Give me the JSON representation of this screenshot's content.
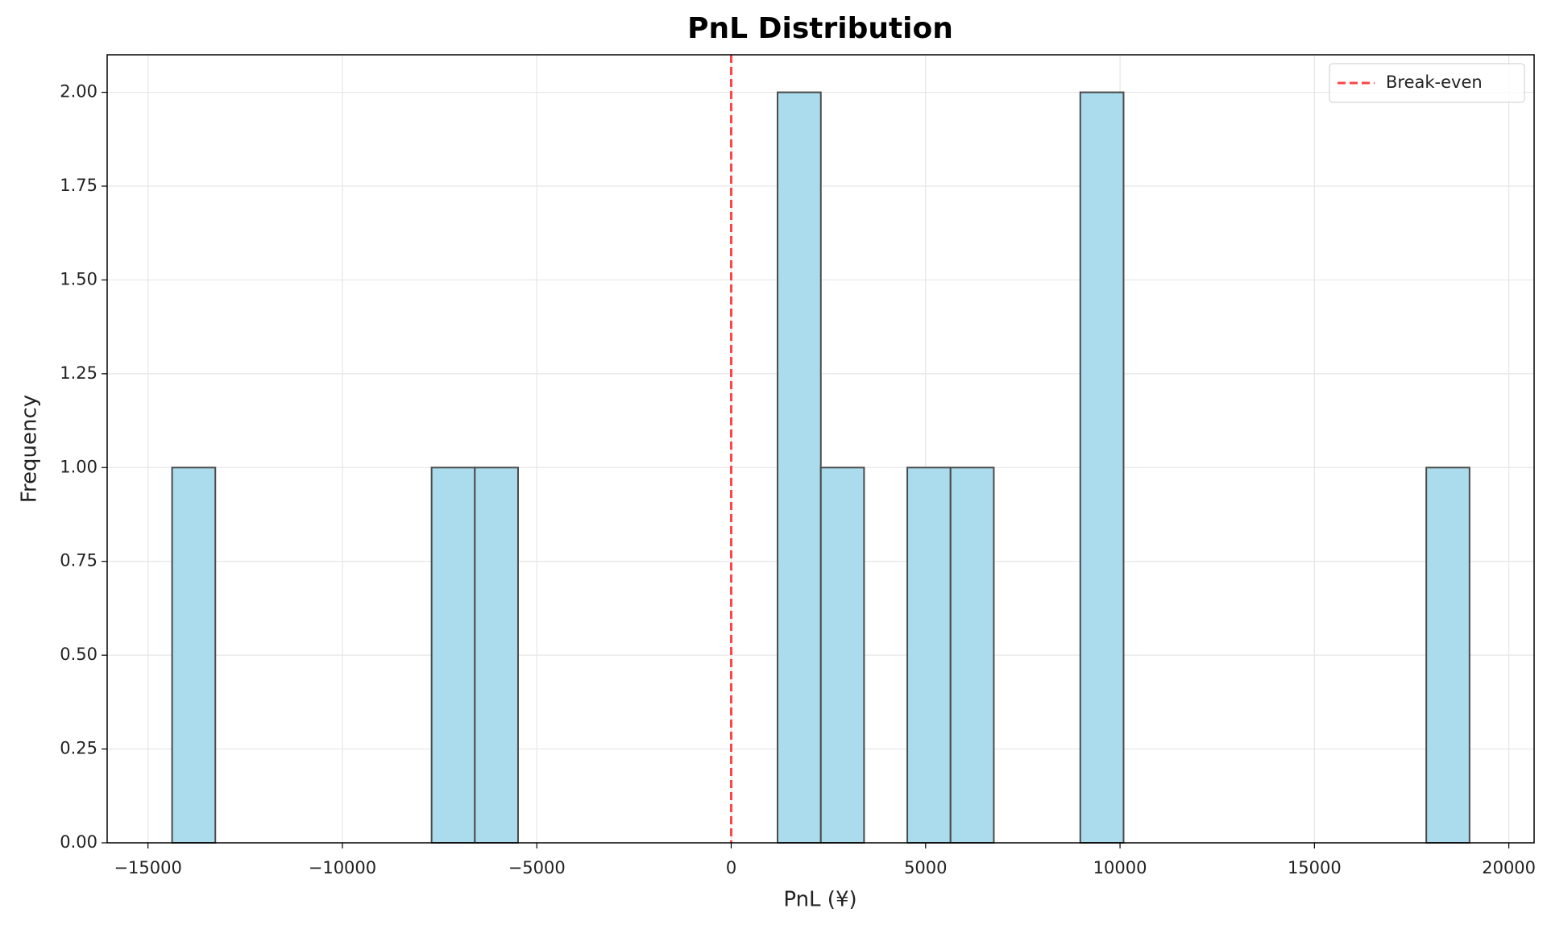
{
  "chart_data": {
    "type": "histogram",
    "title": "PnL Distribution",
    "x_label": "PnL (¥)",
    "y_label": "Frequency",
    "bins": [
      -14380,
      -13268,
      -12155,
      -11043,
      -9931,
      -8818,
      -7706,
      -6594,
      -5482,
      -4369,
      -3257,
      -2145,
      -1032,
      80,
      1192,
      2305,
      3417,
      4529,
      5641,
      6754,
      7866,
      8978,
      10091,
      11203,
      12315,
      13428,
      14540,
      15652,
      16764,
      17877,
      18989
    ],
    "values": [
      1,
      0,
      0,
      0,
      0,
      0,
      1,
      1,
      0,
      0,
      0,
      0,
      0,
      0,
      2,
      1,
      0,
      1,
      1,
      0,
      0,
      2,
      0,
      0,
      0,
      0,
      0,
      0,
      0,
      1
    ],
    "color": "#abdcee",
    "edge_color": "#4a4a4a",
    "xlim": [
      -16050,
      20650
    ],
    "ylim": [
      0,
      2.1
    ],
    "xticks": [
      {
        "value": -15000,
        "label": "−15000"
      },
      {
        "value": -10000,
        "label": "−10000"
      },
      {
        "value": -5000,
        "label": "−5000"
      },
      0,
      5000,
      10000,
      15000,
      20000
    ],
    "yticks": [
      {
        "value": 0,
        "label": "0.00"
      },
      {
        "value": 0.25,
        "label": "0.25"
      },
      {
        "value": 0.5,
        "label": "0.50"
      },
      {
        "value": 0.75,
        "label": "0.75"
      },
      {
        "value": 1,
        "label": "1.00"
      },
      {
        "value": 1.25,
        "label": "1.25"
      },
      {
        "value": 1.5,
        "label": "1.50"
      },
      {
        "value": 1.75,
        "label": "1.75"
      },
      {
        "value": 2,
        "label": "2.00"
      }
    ],
    "grid": true,
    "legend": "upper right",
    "reference_lines": [
      {
        "name": "Break-even",
        "x": 0,
        "color": "#ff4444"
      }
    ]
  }
}
